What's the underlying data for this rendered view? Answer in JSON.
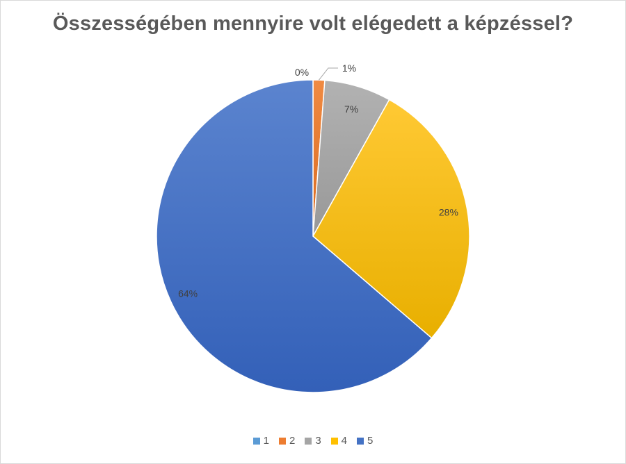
{
  "chart_data": {
    "type": "pie",
    "title": "Összességében mennyire volt elégedett a képzéssel?",
    "categories": [
      "1",
      "2",
      "3",
      "4",
      "5"
    ],
    "values": [
      0,
      1.2,
      6.9,
      28.2,
      63.7
    ],
    "data_labels": [
      "0%",
      "1%",
      "7%",
      "28%",
      "64%"
    ],
    "colors": [
      "#5b9bd5",
      "#ed7d31",
      "#a5a5a5",
      "#ffc000",
      "#4472c4"
    ],
    "legend_position": "bottom"
  }
}
